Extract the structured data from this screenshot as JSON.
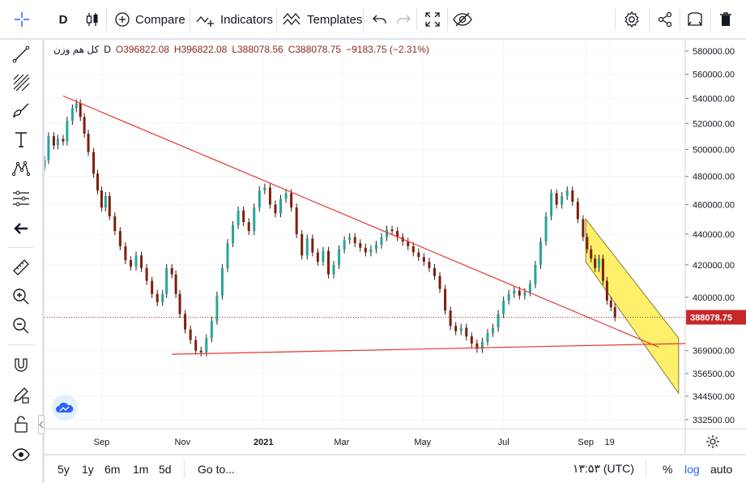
{
  "toolbar": {
    "interval": "D",
    "compare_label": "Compare",
    "indicators_label": "Indicators",
    "templates_label": "Templates"
  },
  "legend": {
    "symbol": "کل هم وزن",
    "interval": "D",
    "open": "O396822.08",
    "high": "H396822.08",
    "low": "L388078.56",
    "close": "C388078.75",
    "change": "−9183.75 (−2.31%)"
  },
  "bottom": {
    "ranges": [
      "5y",
      "1y",
      "6m",
      "1m",
      "5d"
    ],
    "goto_label": "Go to...",
    "time": "۱۳:۵۳ (UTC)",
    "percent_label": "%",
    "log_label": "log",
    "auto_label": "auto"
  },
  "colors": {
    "up": "#26a69a",
    "down": "#ef5350",
    "body_dark": "#7f1d0c",
    "trendline": "#e53935",
    "channel_fill": "#ffeb3b",
    "channel_border": "#8a7a3a",
    "price_line": "#c62828",
    "price_label_bg": "#c62828",
    "accent": "#2962ff"
  },
  "chart_data": {
    "type": "candlestick",
    "scale": "log",
    "y_ticks": [
      580000,
      560000,
      540000,
      520000,
      500000,
      480000,
      460000,
      440000,
      420000,
      400000,
      369000,
      356500,
      344500,
      332500
    ],
    "y_tick_labels": [
      "580000.00",
      "560000.00",
      "540000.00",
      "520000.00",
      "500000.00",
      "480000.00",
      "460000.00",
      "440000.00",
      "420000.00",
      "400000.00",
      "369000.00",
      "356500.00",
      "344500.00",
      "332500.00"
    ],
    "ylim": [
      328000,
      590000
    ],
    "x_labels": [
      {
        "label": "Sep",
        "date": "2020-09-01"
      },
      {
        "label": "Nov",
        "date": "2020-11-01"
      },
      {
        "label": "2021",
        "date": "2021-01-01"
      },
      {
        "label": "Mar",
        "date": "2021-03-01"
      },
      {
        "label": "May",
        "date": "2021-05-01"
      },
      {
        "label": "Jul",
        "date": "2021-07-01"
      },
      {
        "label": "Sep",
        "date": "2021-09-01"
      },
      {
        "label": "19",
        "date": "2021-09-19"
      }
    ],
    "xlim": [
      "2020-07-20",
      "2021-11-15"
    ],
    "last_price": 388078.75,
    "last_price_label": "388078.75",
    "series": [
      {
        "date": "2020-07-20",
        "close": 492000
      },
      {
        "date": "2020-07-23",
        "close": 510000
      },
      {
        "date": "2020-07-27",
        "close": 503000
      },
      {
        "date": "2020-07-30",
        "close": 508000
      },
      {
        "date": "2020-08-03",
        "close": 506000
      },
      {
        "date": "2020-08-06",
        "close": 522000
      },
      {
        "date": "2020-08-10",
        "close": 532000
      },
      {
        "date": "2020-08-13",
        "close": 536000
      },
      {
        "date": "2020-08-16",
        "close": 525000
      },
      {
        "date": "2020-08-19",
        "close": 512000
      },
      {
        "date": "2020-08-22",
        "close": 498000
      },
      {
        "date": "2020-08-26",
        "close": 482000
      },
      {
        "date": "2020-08-29",
        "close": 470000
      },
      {
        "date": "2020-09-01",
        "close": 458000
      },
      {
        "date": "2020-09-04",
        "close": 466000
      },
      {
        "date": "2020-09-07",
        "close": 452000
      },
      {
        "date": "2020-09-11",
        "close": 442000
      },
      {
        "date": "2020-09-15",
        "close": 432000
      },
      {
        "date": "2020-09-19",
        "close": 423000
      },
      {
        "date": "2020-09-23",
        "close": 419000
      },
      {
        "date": "2020-09-27",
        "close": 426000
      },
      {
        "date": "2020-10-01",
        "close": 418000
      },
      {
        "date": "2020-10-05",
        "close": 410000
      },
      {
        "date": "2020-10-09",
        "close": 402000
      },
      {
        "date": "2020-10-13",
        "close": 397000
      },
      {
        "date": "2020-10-17",
        "close": 402000
      },
      {
        "date": "2020-10-20",
        "close": 418000
      },
      {
        "date": "2020-10-24",
        "close": 414000
      },
      {
        "date": "2020-10-27",
        "close": 402000
      },
      {
        "date": "2020-10-30",
        "close": 390000
      },
      {
        "date": "2020-11-03",
        "close": 381000
      },
      {
        "date": "2020-11-07",
        "close": 375000
      },
      {
        "date": "2020-11-11",
        "close": 369000
      },
      {
        "date": "2020-11-15",
        "close": 368000
      },
      {
        "date": "2020-11-19",
        "close": 376000
      },
      {
        "date": "2020-11-23",
        "close": 386000
      },
      {
        "date": "2020-11-27",
        "close": 401000
      },
      {
        "date": "2020-12-01",
        "close": 418000
      },
      {
        "date": "2020-12-05",
        "close": 434000
      },
      {
        "date": "2020-12-09",
        "close": 446000
      },
      {
        "date": "2020-12-13",
        "close": 456000
      },
      {
        "date": "2020-12-17",
        "close": 448000
      },
      {
        "date": "2020-12-21",
        "close": 442000
      },
      {
        "date": "2020-12-25",
        "close": 458000
      },
      {
        "date": "2020-12-29",
        "close": 470000
      },
      {
        "date": "2021-01-02",
        "close": 472000
      },
      {
        "date": "2021-01-06",
        "close": 460000
      },
      {
        "date": "2021-01-10",
        "close": 454000
      },
      {
        "date": "2021-01-14",
        "close": 464000
      },
      {
        "date": "2021-01-18",
        "close": 468000
      },
      {
        "date": "2021-01-22",
        "close": 458000
      },
      {
        "date": "2021-01-26",
        "close": 440000
      },
      {
        "date": "2021-01-30",
        "close": 426000
      },
      {
        "date": "2021-02-03",
        "close": 437000
      },
      {
        "date": "2021-02-07",
        "close": 428000
      },
      {
        "date": "2021-02-11",
        "close": 422000
      },
      {
        "date": "2021-02-15",
        "close": 429000
      },
      {
        "date": "2021-02-19",
        "close": 414000
      },
      {
        "date": "2021-02-23",
        "close": 420000
      },
      {
        "date": "2021-02-27",
        "close": 430000
      },
      {
        "date": "2021-03-03",
        "close": 436000
      },
      {
        "date": "2021-03-07",
        "close": 438000
      },
      {
        "date": "2021-03-11",
        "close": 434000
      },
      {
        "date": "2021-03-15",
        "close": 431000
      },
      {
        "date": "2021-03-19",
        "close": 428000
      },
      {
        "date": "2021-03-23",
        "close": 430000
      },
      {
        "date": "2021-03-27",
        "close": 433000
      },
      {
        "date": "2021-03-31",
        "close": 438000
      },
      {
        "date": "2021-04-04",
        "close": 443000
      },
      {
        "date": "2021-04-08",
        "close": 442000
      },
      {
        "date": "2021-04-12",
        "close": 438000
      },
      {
        "date": "2021-04-16",
        "close": 435000
      },
      {
        "date": "2021-04-20",
        "close": 432000
      },
      {
        "date": "2021-04-24",
        "close": 428000
      },
      {
        "date": "2021-04-28",
        "close": 425000
      },
      {
        "date": "2021-05-02",
        "close": 422000
      },
      {
        "date": "2021-05-06",
        "close": 418000
      },
      {
        "date": "2021-05-10",
        "close": 413000
      },
      {
        "date": "2021-05-14",
        "close": 405000
      },
      {
        "date": "2021-05-18",
        "close": 392000
      },
      {
        "date": "2021-05-22",
        "close": 383000
      },
      {
        "date": "2021-05-26",
        "close": 380000
      },
      {
        "date": "2021-05-30",
        "close": 382000
      },
      {
        "date": "2021-06-03",
        "close": 377000
      },
      {
        "date": "2021-06-07",
        "close": 373000
      },
      {
        "date": "2021-06-11",
        "close": 370000
      },
      {
        "date": "2021-06-15",
        "close": 374000
      },
      {
        "date": "2021-06-19",
        "close": 379000
      },
      {
        "date": "2021-06-23",
        "close": 382000
      },
      {
        "date": "2021-06-27",
        "close": 390000
      },
      {
        "date": "2021-07-01",
        "close": 398000
      },
      {
        "date": "2021-07-05",
        "close": 402000
      },
      {
        "date": "2021-07-09",
        "close": 404000
      },
      {
        "date": "2021-07-13",
        "close": 401000
      },
      {
        "date": "2021-07-17",
        "close": 403000
      },
      {
        "date": "2021-07-21",
        "close": 408000
      },
      {
        "date": "2021-07-25",
        "close": 420000
      },
      {
        "date": "2021-07-29",
        "close": 435000
      },
      {
        "date": "2021-08-02",
        "close": 452000
      },
      {
        "date": "2021-08-06",
        "close": 468000
      },
      {
        "date": "2021-08-10",
        "close": 460000
      },
      {
        "date": "2021-08-14",
        "close": 466000
      },
      {
        "date": "2021-08-18",
        "close": 470000
      },
      {
        "date": "2021-08-22",
        "close": 462000
      },
      {
        "date": "2021-08-26",
        "close": 450000
      },
      {
        "date": "2021-08-30",
        "close": 438000
      },
      {
        "date": "2021-09-02",
        "close": 430000
      },
      {
        "date": "2021-09-05",
        "close": 424000
      },
      {
        "date": "2021-09-08",
        "close": 418000
      },
      {
        "date": "2021-09-11",
        "close": 424000
      },
      {
        "date": "2021-09-14",
        "close": 410000
      },
      {
        "date": "2021-09-17",
        "close": 398000
      },
      {
        "date": "2021-09-20",
        "close": 394000
      },
      {
        "date": "2021-09-23",
        "close": 388078.75
      }
    ],
    "trendlines": [
      {
        "from": {
          "date": "2020-08-03",
          "price": 542000
        },
        "to": {
          "date": "2021-10-26",
          "price": 371000
        }
      },
      {
        "from": {
          "date": "2020-10-24",
          "price": 367000
        },
        "to": {
          "date": "2021-11-15",
          "price": 373000
        }
      }
    ],
    "channel": [
      {
        "date": "2021-09-01",
        "price": 450000
      },
      {
        "date": "2021-11-10",
        "price": 376000
      },
      {
        "date": "2021-11-10",
        "price": 346000
      },
      {
        "date": "2021-09-01",
        "price": 422000
      }
    ]
  }
}
